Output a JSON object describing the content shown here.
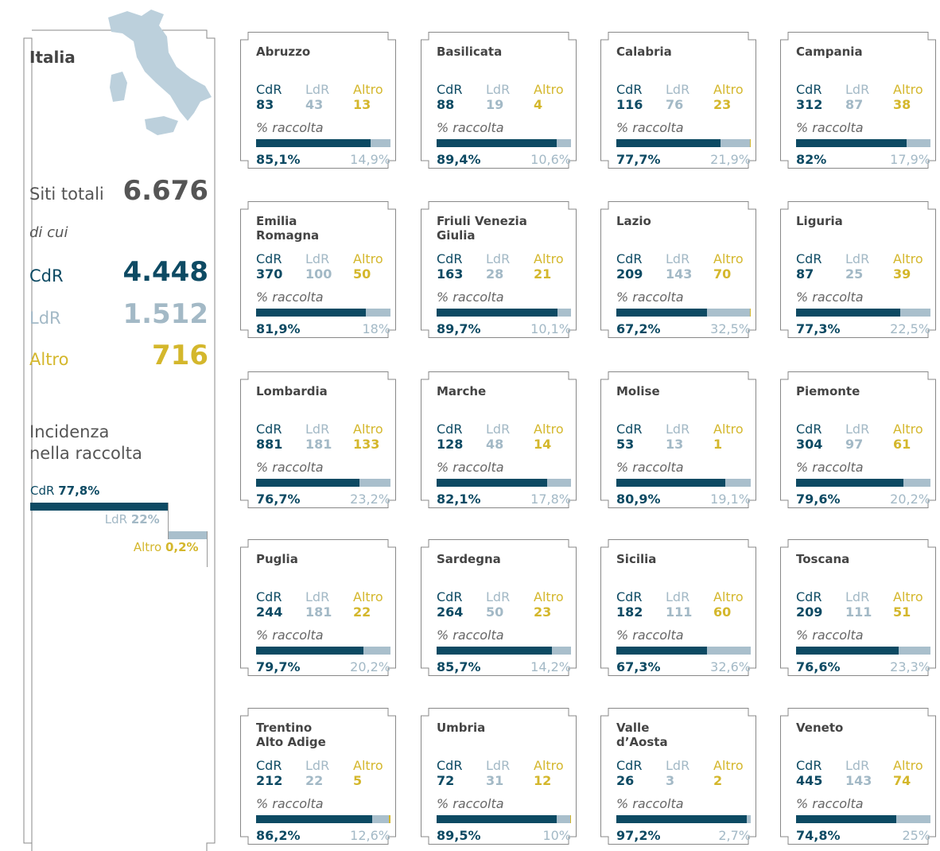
{
  "italia": {
    "title": "Italia",
    "total_label": "Siti totali",
    "total": "6.676",
    "of_which": "di cui",
    "cdr_label": "CdR",
    "cdr": "4.448",
    "ldr_label": "LdR",
    "ldr": "1.512",
    "altro_label": "Altro",
    "altro": "716",
    "incidence_title": "Incidenza\nnella raccolta",
    "incidence": [
      {
        "name": "CdR",
        "pct": {
          "value": 77.8,
          "label": "77,8%"
        }
      },
      {
        "name": "LdR",
        "pct": {
          "value": 22,
          "label": "22%"
        }
      },
      {
        "name": "Altro",
        "pct": {
          "value": 0.2,
          "label": "0,2%"
        }
      }
    ]
  },
  "card_labels": {
    "cdr": "CdR",
    "ldr": "LdR",
    "altro": "Altro",
    "caption": "% raccolta"
  },
  "regions": [
    {
      "name": "Abruzzo",
      "cdr": 83,
      "ldr": 43,
      "altro": 13,
      "cdr_pct": {
        "value": 85.1,
        "label": "85,1%"
      },
      "ldr_pct": {
        "value": 14.9,
        "label": "14,9%"
      }
    },
    {
      "name": "Basilicata",
      "cdr": 88,
      "ldr": 19,
      "altro": 4,
      "cdr_pct": {
        "value": 89.4,
        "label": "89,4%"
      },
      "ldr_pct": {
        "value": 10.6,
        "label": "10,6%"
      }
    },
    {
      "name": "Calabria",
      "cdr": 116,
      "ldr": 76,
      "altro": 23,
      "cdr_pct": {
        "value": 77.7,
        "label": "77,7%"
      },
      "ldr_pct": {
        "value": 21.9,
        "label": "21,9%"
      }
    },
    {
      "name": "Campania",
      "cdr": 312,
      "ldr": 87,
      "altro": 38,
      "cdr_pct": {
        "value": 82,
        "label": "82%"
      },
      "ldr_pct": {
        "value": 17.9,
        "label": "17,9%"
      }
    },
    {
      "name": "Emilia\nRomagna",
      "cdr": 370,
      "ldr": 100,
      "altro": 50,
      "cdr_pct": {
        "value": 81.9,
        "label": "81,9%"
      },
      "ldr_pct": {
        "value": 18,
        "label": "18%"
      }
    },
    {
      "name": "Friuli Venezia\nGiulia",
      "cdr": 163,
      "ldr": 28,
      "altro": 21,
      "cdr_pct": {
        "value": 89.7,
        "label": "89,7%"
      },
      "ldr_pct": {
        "value": 10.1,
        "label": "10,1%"
      }
    },
    {
      "name": "Lazio",
      "cdr": 209,
      "ldr": 143,
      "altro": 70,
      "cdr_pct": {
        "value": 67.2,
        "label": "67,2%"
      },
      "ldr_pct": {
        "value": 32.5,
        "label": "32,5%"
      }
    },
    {
      "name": "Liguria",
      "cdr": 87,
      "ldr": 25,
      "altro": 39,
      "cdr_pct": {
        "value": 77.3,
        "label": "77,3%"
      },
      "ldr_pct": {
        "value": 22.5,
        "label": "22,5%"
      }
    },
    {
      "name": "Lombardia",
      "cdr": 881,
      "ldr": 181,
      "altro": 133,
      "cdr_pct": {
        "value": 76.7,
        "label": "76,7%"
      },
      "ldr_pct": {
        "value": 23.2,
        "label": "23,2%"
      }
    },
    {
      "name": "Marche",
      "cdr": 128,
      "ldr": 48,
      "altro": 14,
      "cdr_pct": {
        "value": 82.1,
        "label": "82,1%"
      },
      "ldr_pct": {
        "value": 17.8,
        "label": "17,8%"
      }
    },
    {
      "name": "Molise",
      "cdr": 53,
      "ldr": 13,
      "altro": 1,
      "cdr_pct": {
        "value": 80.9,
        "label": "80,9%"
      },
      "ldr_pct": {
        "value": 19.1,
        "label": "19,1%"
      }
    },
    {
      "name": "Piemonte",
      "cdr": 304,
      "ldr": 97,
      "altro": 61,
      "cdr_pct": {
        "value": 79.6,
        "label": "79,6%"
      },
      "ldr_pct": {
        "value": 20.2,
        "label": "20,2%"
      }
    },
    {
      "name": "Puglia",
      "cdr": 244,
      "ldr": 181,
      "altro": 22,
      "cdr_pct": {
        "value": 79.7,
        "label": "79,7%"
      },
      "ldr_pct": {
        "value": 20.2,
        "label": "20,2%"
      }
    },
    {
      "name": "Sardegna",
      "cdr": 264,
      "ldr": 50,
      "altro": 23,
      "cdr_pct": {
        "value": 85.7,
        "label": "85,7%"
      },
      "ldr_pct": {
        "value": 14.2,
        "label": "14,2%"
      }
    },
    {
      "name": "Sicilia",
      "cdr": 182,
      "ldr": 111,
      "altro": 60,
      "cdr_pct": {
        "value": 67.3,
        "label": "67,3%"
      },
      "ldr_pct": {
        "value": 32.6,
        "label": "32,6%"
      }
    },
    {
      "name": "Toscana",
      "cdr": 209,
      "ldr": 111,
      "altro": 51,
      "cdr_pct": {
        "value": 76.6,
        "label": "76,6%"
      },
      "ldr_pct": {
        "value": 23.3,
        "label": "23,3%"
      }
    },
    {
      "name": "Trentino\nAlto Adige",
      "cdr": 212,
      "ldr": 22,
      "altro": 5,
      "cdr_pct": {
        "value": 86.2,
        "label": "86,2%"
      },
      "ldr_pct": {
        "value": 12.6,
        "label": "12,6%"
      }
    },
    {
      "name": "Umbria",
      "cdr": 72,
      "ldr": 31,
      "altro": 12,
      "cdr_pct": {
        "value": 89.5,
        "label": "89,5%"
      },
      "ldr_pct": {
        "value": 10,
        "label": "10%"
      }
    },
    {
      "name": "Valle\nd’Aosta",
      "cdr": 26,
      "ldr": 3,
      "altro": 2,
      "cdr_pct": {
        "value": 97.2,
        "label": "97,2%"
      },
      "ldr_pct": {
        "value": 2.7,
        "label": "2,7%"
      }
    },
    {
      "name": "Veneto",
      "cdr": 445,
      "ldr": 143,
      "altro": 74,
      "cdr_pct": {
        "value": 74.8,
        "label": "74,8%"
      },
      "ldr_pct": {
        "value": 25,
        "label": "25%"
      }
    }
  ]
}
